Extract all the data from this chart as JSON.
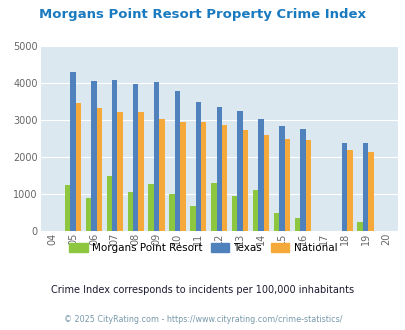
{
  "title": "Morgans Point Resort Property Crime Index",
  "years": [
    "04",
    "05",
    "06",
    "07",
    "08",
    "09",
    "10",
    "11",
    "12",
    "13",
    "14",
    "15",
    "16",
    "17",
    "18",
    "19",
    "20"
  ],
  "morgans": [
    0,
    1250,
    880,
    1490,
    1050,
    1260,
    1000,
    680,
    1310,
    960,
    1110,
    480,
    350,
    0,
    0,
    240,
    0
  ],
  "texas": [
    0,
    4300,
    4070,
    4090,
    3990,
    4020,
    3800,
    3490,
    3360,
    3250,
    3040,
    2840,
    2770,
    0,
    2380,
    2380,
    0
  ],
  "national": [
    0,
    3450,
    3330,
    3230,
    3210,
    3040,
    2950,
    2940,
    2880,
    2730,
    2590,
    2480,
    2450,
    0,
    2190,
    2130,
    0
  ],
  "color_morgans": "#8dc63f",
  "color_texas": "#4f81bd",
  "color_national": "#f6a93b",
  "bg_color": "#dce8f0",
  "ylim": [
    0,
    5000
  ],
  "yticks": [
    0,
    1000,
    2000,
    3000,
    4000,
    5000
  ],
  "subtitle": "Crime Index corresponds to incidents per 100,000 inhabitants",
  "footer": "© 2025 CityRating.com - https://www.cityrating.com/crime-statistics/",
  "legend_labels": [
    "Morgans Point Resort",
    "Texas",
    "National"
  ],
  "title_color": "#1a7abf",
  "subtitle_color": "#1a1a2e",
  "footer_color": "#7799aa"
}
